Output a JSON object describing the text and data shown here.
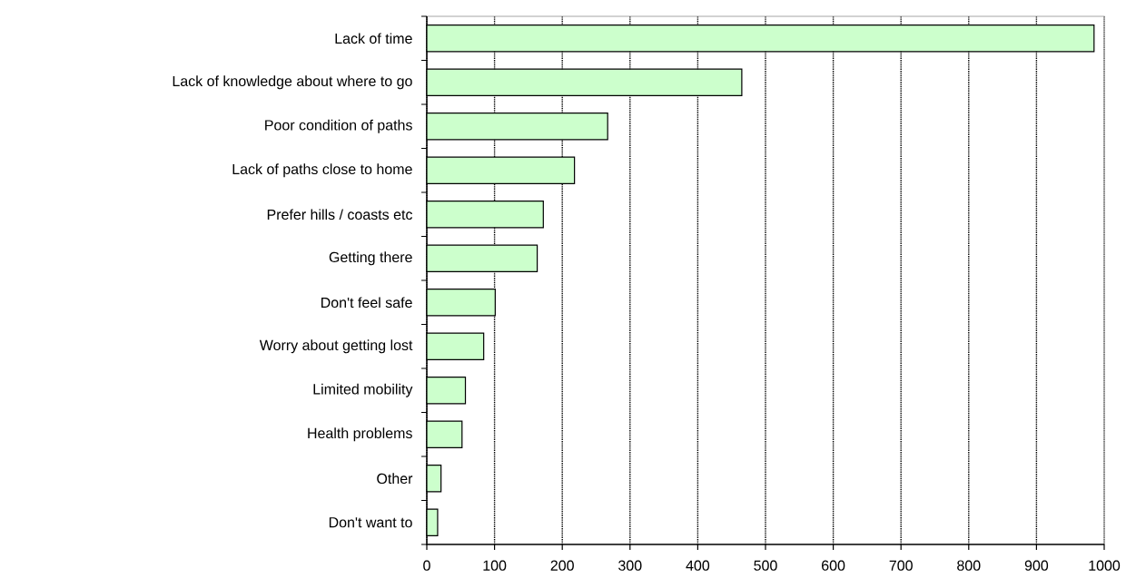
{
  "chart_data": {
    "type": "bar",
    "orientation": "horizontal",
    "categories": [
      "Lack of time",
      "Lack of knowledge about where to go",
      "Poor condition of paths",
      "Lack of paths close to home",
      "Prefer hills / coasts etc",
      "Getting there",
      "Don't feel safe",
      "Worry about getting lost",
      "Limited mobility",
      "Health problems",
      "Other",
      "Don't want to"
    ],
    "values": [
      985,
      465,
      267,
      218,
      172,
      163,
      101,
      84,
      57,
      52,
      21,
      16
    ],
    "color": "#ccffcc",
    "xlim": [
      0,
      1000
    ],
    "xticks": [
      0,
      100,
      200,
      300,
      400,
      500,
      600,
      700,
      800,
      900,
      1000
    ],
    "grid": "x",
    "line_style": "dotted"
  }
}
